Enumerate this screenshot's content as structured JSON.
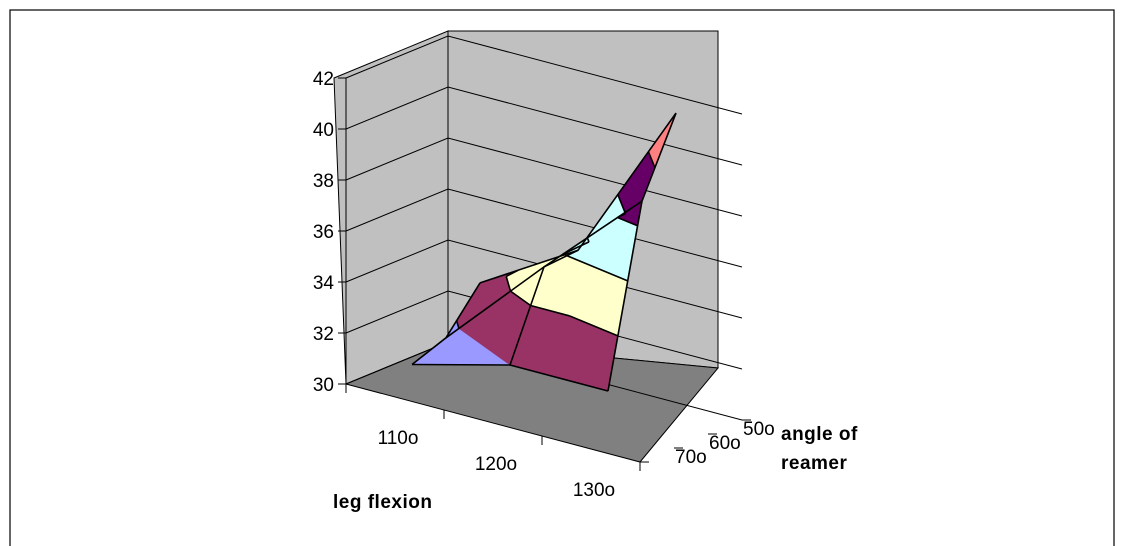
{
  "chart_data": {
    "type": "surface",
    "title": "",
    "xlabel": "leg flexion",
    "ylabel": "angle of reamer",
    "zlabel": "",
    "x_categories": [
      "110o",
      "120o",
      "130o"
    ],
    "y_categories": [
      "50o",
      "60o",
      "70o"
    ],
    "zlim": [
      30,
      42
    ],
    "z_ticks": [
      "30",
      "32",
      "34",
      "36",
      "38",
      "40",
      "42"
    ],
    "grid": true,
    "legend": "none",
    "band_colors": {
      "30-32": "#9999ff",
      "32-34": "#993366",
      "34-36": "#ffffcc",
      "36-38": "#ccffff",
      "38-40": "#660066",
      "40-42": "#ff8080"
    },
    "series": [
      {
        "values": [
          33.1,
          35.4,
          41.8
        ]
      },
      {
        "values": [
          31.5,
          35.3,
          38.9
        ]
      },
      {
        "values": [
          31.0,
          32.0,
          32.0
        ]
      }
    ]
  }
}
